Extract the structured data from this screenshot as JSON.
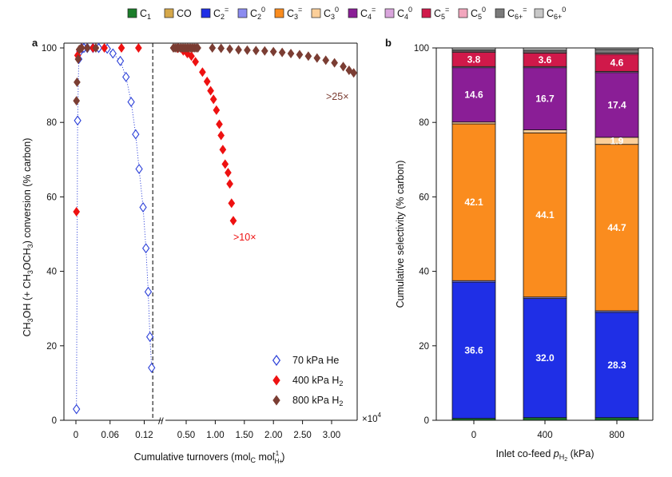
{
  "legend": {
    "entries": [
      {
        "id": "C1",
        "base": "C",
        "sub": "1",
        "sup": "",
        "color": "#1b7d2a"
      },
      {
        "id": "CO",
        "base": "CO",
        "sub": "",
        "sup": "",
        "color": "#d5a84a"
      },
      {
        "id": "C2=",
        "base": "C",
        "sub": "2",
        "sup": "=",
        "color": "#1f2fe6"
      },
      {
        "id": "C2_0",
        "base": "C",
        "sub": "2",
        "sup": "0",
        "color": "#8c8cf0"
      },
      {
        "id": "C3=",
        "base": "C",
        "sub": "3",
        "sup": "=",
        "color": "#fa8c1e"
      },
      {
        "id": "C3_0",
        "base": "C",
        "sub": "3",
        "sup": "0",
        "color": "#fbcf9a"
      },
      {
        "id": "C4=",
        "base": "C",
        "sub": "4",
        "sup": "=",
        "color": "#8a1e96"
      },
      {
        "id": "C4_0",
        "base": "C",
        "sub": "4",
        "sup": "0",
        "color": "#d9a5dc"
      },
      {
        "id": "C5=",
        "base": "C",
        "sub": "5",
        "sup": "=",
        "color": "#d0194a"
      },
      {
        "id": "C5_0",
        "base": "C",
        "sub": "5",
        "sup": "0",
        "color": "#f2a6bd"
      },
      {
        "id": "C6+=",
        "base": "C",
        "sub": "6+",
        "sup": "=",
        "color": "#7a7a7a"
      },
      {
        "id": "C6+_0",
        "base": "C",
        "sub": "6+",
        "sup": "0",
        "color": "#c8c8c8"
      }
    ]
  },
  "chart_data": [
    {
      "panel": "a",
      "type": "scatter",
      "title": "",
      "ylabel": {
        "prefix": "CH",
        "sub1": "3",
        "mid": "OH (+ CH",
        "sub2": "3",
        "mid2": "OCH",
        "sub3": "3",
        "suffix": ") conversion (% carbon)"
      },
      "xlabel": {
        "prefix": "Cumulative turnovers (mol",
        "sub1": "C",
        "mid": " mol",
        "sub2": "H+",
        "sup2": "-1",
        "suffix": ")"
      },
      "x_multiplier": "×10",
      "x_multiplier_exp": "4",
      "ylim": [
        0,
        100
      ],
      "y_ticks": [
        0,
        20,
        40,
        60,
        80,
        100
      ],
      "x_break": {
        "left_range": [
          0,
          0.14
        ],
        "right_range": [
          0.25,
          3.45
        ],
        "break_marker": "//"
      },
      "x_ticks_left": [
        0,
        0.06,
        0.12
      ],
      "x_ticks_left_labels": [
        "0",
        "0.06",
        "0.12"
      ],
      "x_ticks_right": [
        0.5,
        1.0,
        1.5,
        2.0,
        2.5,
        3.0
      ],
      "x_ticks_right_labels": [
        "0.50",
        "1.00",
        "1.50",
        "2.00",
        "2.50",
        "3.00"
      ],
      "dashed_line_x": 0.135,
      "series": [
        {
          "name": "70 kPa He",
          "color": "#2b3fd8",
          "marker": "open-diamond",
          "points": [
            [
              0.001,
              3
            ],
            [
              0.003,
              80.5
            ],
            [
              0.005,
              97
            ],
            [
              0.007,
              99
            ],
            [
              0.01,
              100
            ],
            [
              0.014,
              100
            ],
            [
              0.02,
              100
            ],
            [
              0.03,
              100
            ],
            [
              0.04,
              100
            ],
            [
              0.055,
              99.8
            ],
            [
              0.065,
              98.5
            ],
            [
              0.078,
              96.5
            ],
            [
              0.088,
              92.2
            ],
            [
              0.097,
              85.5
            ],
            [
              0.105,
              76.8
            ],
            [
              0.111,
              67.5
            ],
            [
              0.118,
              57.2
            ],
            [
              0.123,
              46.2
            ],
            [
              0.127,
              34.5
            ],
            [
              0.13,
              22.4
            ],
            [
              0.133,
              14.1
            ]
          ]
        },
        {
          "name": "400 kPa H2",
          "label_base": "400 kPa H",
          "label_sub": "2",
          "color": "#ee1111",
          "marker": "filled-diamond",
          "points": [
            [
              0.001,
              56
            ],
            [
              0.003,
              98
            ],
            [
              0.006,
              99.5
            ],
            [
              0.01,
              100
            ],
            [
              0.03,
              100
            ],
            [
              0.05,
              100
            ],
            [
              0.08,
              100
            ],
            [
              0.11,
              100
            ],
            [
              0.35,
              99.9
            ],
            [
              0.45,
              99.2
            ],
            [
              0.52,
              98.5
            ],
            [
              0.59,
              97.8
            ],
            [
              0.66,
              96.3
            ],
            [
              0.78,
              93.5
            ],
            [
              0.86,
              91
            ],
            [
              0.92,
              88.5
            ],
            [
              0.97,
              86.2
            ],
            [
              1.02,
              83.3
            ],
            [
              1.07,
              79.5
            ],
            [
              1.1,
              76.5
            ],
            [
              1.13,
              72.7
            ],
            [
              1.17,
              68.8
            ],
            [
              1.22,
              66.5
            ],
            [
              1.25,
              63.5
            ],
            [
              1.28,
              58.3
            ],
            [
              1.31,
              53.6
            ]
          ]
        },
        {
          "name": "800 kPa H2",
          "label_base": "800 kPa H",
          "label_sub": "2",
          "color": "#7b3d33",
          "marker": "filled-diamond",
          "points": [
            [
              0.001,
              85.8
            ],
            [
              0.002,
              90.8
            ],
            [
              0.004,
              97
            ],
            [
              0.006,
              99.6
            ],
            [
              0.01,
              100
            ],
            [
              0.02,
              100
            ],
            [
              0.035,
              100
            ],
            [
              0.28,
              100
            ],
            [
              0.31,
              100
            ],
            [
              0.34,
              100
            ],
            [
              0.37,
              100
            ],
            [
              0.4,
              100
            ],
            [
              0.43,
              100
            ],
            [
              0.46,
              100
            ],
            [
              0.49,
              100
            ],
            [
              0.52,
              100
            ],
            [
              0.55,
              100
            ],
            [
              0.58,
              100
            ],
            [
              0.61,
              100
            ],
            [
              0.64,
              100
            ],
            [
              0.67,
              100
            ],
            [
              0.7,
              100
            ],
            [
              0.95,
              100
            ],
            [
              1.1,
              99.9
            ],
            [
              1.25,
              99.7
            ],
            [
              1.4,
              99.5
            ],
            [
              1.55,
              99.4
            ],
            [
              1.7,
              99.3
            ],
            [
              1.85,
              99.2
            ],
            [
              2.0,
              99.0
            ],
            [
              2.15,
              98.8
            ],
            [
              2.3,
              98.5
            ],
            [
              2.45,
              98.2
            ],
            [
              2.6,
              97.8
            ],
            [
              2.75,
              97.3
            ],
            [
              2.9,
              96.7
            ],
            [
              3.05,
              96.0
            ],
            [
              3.2,
              95.0
            ],
            [
              3.3,
              94.0
            ],
            [
              3.38,
              93.3
            ]
          ]
        }
      ],
      "annotations": [
        {
          "text": ">25×",
          "color": "#7b3d33"
        },
        {
          "text": ">10×",
          "color": "#ee1111"
        }
      ]
    },
    {
      "panel": "b",
      "type": "bar",
      "stacked": true,
      "title": "",
      "categories": [
        "0",
        "400",
        "800"
      ],
      "ylabel": "Cumulative selectivity (% carbon)",
      "xlabel": {
        "prefix": "Inlet co-feed ",
        "p": "p",
        "sub": "H2",
        "suffix": " (kPa)"
      },
      "ylim": [
        0,
        100
      ],
      "y_ticks": [
        0,
        20,
        40,
        60,
        80,
        100
      ],
      "series": [
        {
          "name": "C1",
          "color": "#1b7d2a",
          "values": [
            0.5,
            0.7,
            0.7
          ]
        },
        {
          "name": "CO",
          "color": "#d5a84a",
          "values": [
            0.0,
            0.0,
            0.0
          ]
        },
        {
          "name": "C2=",
          "color": "#1f2fe6",
          "values": [
            36.6,
            32.0,
            28.3
          ]
        },
        {
          "name": "C2_0",
          "color": "#8c8cf0",
          "values": [
            0.4,
            0.4,
            0.4
          ]
        },
        {
          "name": "C3=",
          "color": "#fa8c1e",
          "values": [
            42.1,
            44.1,
            44.7
          ]
        },
        {
          "name": "C3_0",
          "color": "#fbcf9a",
          "values": [
            0.5,
            0.8,
            1.9
          ]
        },
        {
          "name": "C4=",
          "color": "#8a1e96",
          "values": [
            14.6,
            16.7,
            17.4
          ]
        },
        {
          "name": "C4_0",
          "color": "#d9a5dc",
          "values": [
            0.3,
            0.3,
            0.3
          ]
        },
        {
          "name": "C5=",
          "color": "#d0194a",
          "values": [
            3.8,
            3.6,
            4.6
          ]
        },
        {
          "name": "C5_0",
          "color": "#f2a6bd",
          "values": [
            0.3,
            0.3,
            0.3
          ]
        },
        {
          "name": "C6+=",
          "color": "#7a7a7a",
          "values": [
            0.4,
            0.5,
            1.0
          ]
        },
        {
          "name": "C6+_0",
          "color": "#c8c8c8",
          "values": [
            0.5,
            0.6,
            0.4
          ]
        }
      ],
      "data_labels": [
        {
          "series": "C2=",
          "labels": [
            "36.6",
            "32.0",
            "28.3"
          ]
        },
        {
          "series": "C3=",
          "labels": [
            "42.1",
            "44.1",
            "44.7"
          ]
        },
        {
          "series": "C3_0",
          "labels": [
            "",
            "",
            "1.9"
          ]
        },
        {
          "series": "C4=",
          "labels": [
            "14.6",
            "16.7",
            "17.4"
          ]
        },
        {
          "series": "C5=",
          "labels": [
            "3.8",
            "3.6",
            "4.6"
          ]
        }
      ]
    }
  ]
}
